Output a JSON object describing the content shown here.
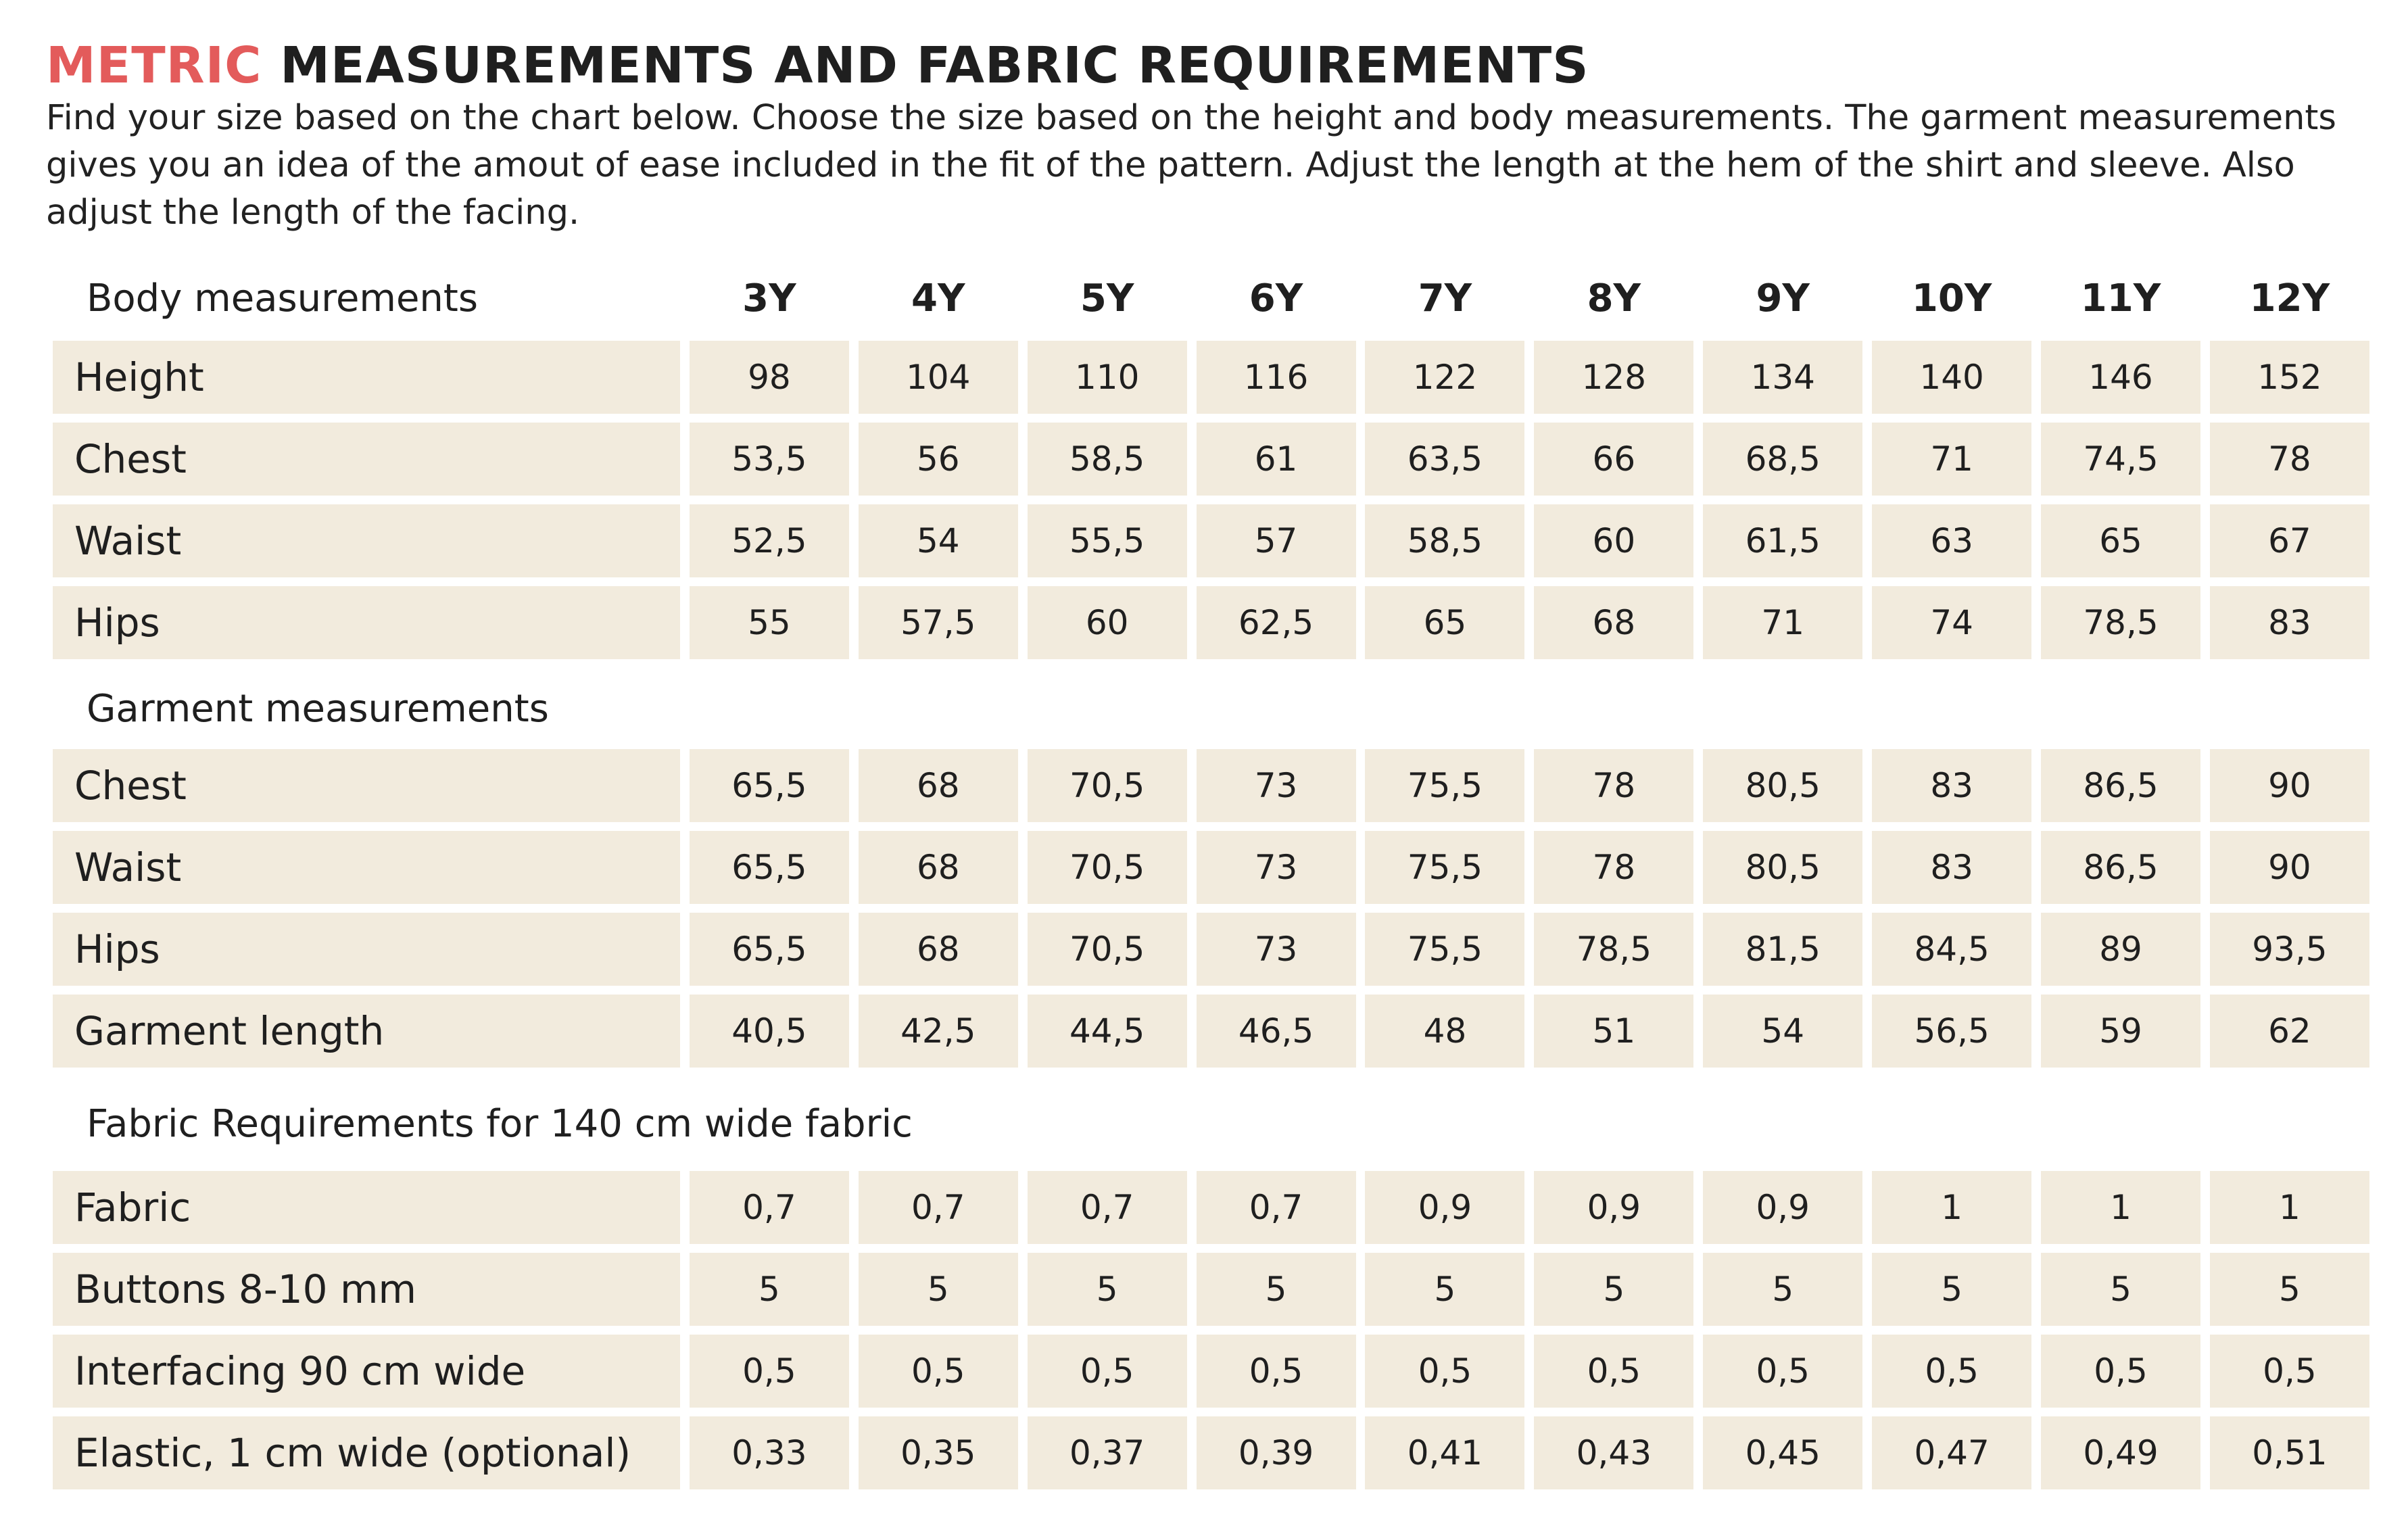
{
  "header": {
    "title_accent": "METRIC",
    "title_rest": " MEASUREMENTS AND FABRIC REQUIREMENTS",
    "intro": "Find your size based on the chart below. Choose the size based on the height and body measurements. The garment measurements gives you an idea of the amout of ease included in the fit of the pattern. Adjust the length at the hem of the shirt and sleeve. Also adjust the length of the facing."
  },
  "colors": {
    "accent": "#e35b5b",
    "cell_background": "#f2ebdd",
    "text": "#1f1f1f"
  },
  "table": {
    "sizes": [
      "3Y",
      "4Y",
      "5Y",
      "6Y",
      "7Y",
      "8Y",
      "9Y",
      "10Y",
      "11Y",
      "12Y"
    ],
    "body": {
      "heading": "Body measurements",
      "rows": [
        {
          "label": "Height",
          "values": [
            "98",
            "104",
            "110",
            "116",
            "122",
            "128",
            "134",
            "140",
            "146",
            "152"
          ]
        },
        {
          "label": "Chest",
          "values": [
            "53,5",
            "56",
            "58,5",
            "61",
            "63,5",
            "66",
            "68,5",
            "71",
            "74,5",
            "78"
          ]
        },
        {
          "label": "Waist",
          "values": [
            "52,5",
            "54",
            "55,5",
            "57",
            "58,5",
            "60",
            "61,5",
            "63",
            "65",
            "67"
          ]
        },
        {
          "label": "Hips",
          "values": [
            "55",
            "57,5",
            "60",
            "62,5",
            "65",
            "68",
            "71",
            "74",
            "78,5",
            "83"
          ]
        }
      ]
    },
    "garment": {
      "heading": "Garment measurements",
      "rows": [
        {
          "label": "Chest",
          "values": [
            "65,5",
            "68",
            "70,5",
            "73",
            "75,5",
            "78",
            "80,5",
            "83",
            "86,5",
            "90"
          ]
        },
        {
          "label": "Waist",
          "values": [
            "65,5",
            "68",
            "70,5",
            "73",
            "75,5",
            "78",
            "80,5",
            "83",
            "86,5",
            "90"
          ]
        },
        {
          "label": "Hips",
          "values": [
            "65,5",
            "68",
            "70,5",
            "73",
            "75,5",
            "78,5",
            "81,5",
            "84,5",
            "89",
            "93,5"
          ]
        },
        {
          "label": "Garment length",
          "values": [
            "40,5",
            "42,5",
            "44,5",
            "46,5",
            "48",
            "51",
            "54",
            "56,5",
            "59",
            "62"
          ]
        }
      ]
    },
    "fabric": {
      "heading": "Fabric Requirements for 140 cm wide fabric",
      "rows": [
        {
          "label": "Fabric",
          "values": [
            "0,7",
            "0,7",
            "0,7",
            "0,7",
            "0,9",
            "0,9",
            "0,9",
            "1",
            "1",
            "1"
          ]
        },
        {
          "label": "Buttons 8-10 mm",
          "values": [
            "5",
            "5",
            "5",
            "5",
            "5",
            "5",
            "5",
            "5",
            "5",
            "5"
          ]
        },
        {
          "label": "Interfacing 90 cm wide",
          "values": [
            "0,5",
            "0,5",
            "0,5",
            "0,5",
            "0,5",
            "0,5",
            "0,5",
            "0,5",
            "0,5",
            "0,5"
          ]
        },
        {
          "label": "Elastic, 1 cm wide (optional)",
          "values": [
            "0,33",
            "0,35",
            "0,37",
            "0,39",
            "0,41",
            "0,43",
            "0,45",
            "0,47",
            "0,49",
            "0,51"
          ]
        }
      ]
    }
  }
}
